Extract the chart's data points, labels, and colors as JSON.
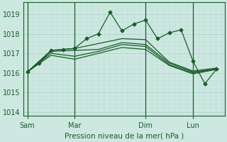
{
  "xlabel": "Pression niveau de la mer( hPa )",
  "bg_color": "#cce8e0",
  "grid_color_major": "#a8d0c8",
  "grid_color_minor": "#bcddd6",
  "line_color": "#1a5c2a",
  "ylim": [
    1013.8,
    1019.6
  ],
  "yticks": [
    1014,
    1015,
    1016,
    1017,
    1018,
    1019
  ],
  "xtick_labels": [
    "Sam",
    "Mar",
    "Dim",
    "Lun"
  ],
  "xtick_positions": [
    0,
    24,
    60,
    84
  ],
  "xlim": [
    -2,
    100
  ],
  "vline_positions": [
    0,
    24,
    60,
    84
  ],
  "series": [
    {
      "x": [
        0,
        6,
        12,
        18,
        24,
        30,
        36,
        42,
        48,
        54,
        60,
        66,
        72,
        78,
        84,
        90,
        96
      ],
      "y": [
        1016.05,
        1016.5,
        1017.15,
        1017.2,
        1017.25,
        1017.75,
        1018.0,
        1019.1,
        1018.15,
        1018.5,
        1018.7,
        1017.75,
        1018.05,
        1018.2,
        1016.6,
        1015.45,
        1016.2
      ],
      "marker": "D",
      "ms": 2.5,
      "lw": 0.9
    },
    {
      "x": [
        0,
        12,
        24,
        36,
        48,
        60,
        72,
        84,
        96
      ],
      "y": [
        1016.05,
        1017.15,
        1017.25,
        1017.5,
        1017.75,
        1017.7,
        1016.55,
        1016.1,
        1016.25
      ],
      "marker": null,
      "ms": 0,
      "lw": 0.9
    },
    {
      "x": [
        0,
        12,
        24,
        36,
        48,
        60,
        72,
        84,
        96
      ],
      "y": [
        1016.05,
        1017.1,
        1017.15,
        1017.2,
        1017.55,
        1017.45,
        1016.5,
        1016.05,
        1016.2
      ],
      "marker": null,
      "ms": 0,
      "lw": 0.9
    },
    {
      "x": [
        0,
        12,
        24,
        36,
        48,
        60,
        72,
        84,
        96
      ],
      "y": [
        1016.05,
        1017.0,
        1016.85,
        1017.1,
        1017.45,
        1017.35,
        1016.42,
        1016.0,
        1016.2
      ],
      "marker": null,
      "ms": 0,
      "lw": 0.9
    },
    {
      "x": [
        0,
        12,
        24,
        36,
        48,
        60,
        72,
        84,
        96
      ],
      "y": [
        1016.05,
        1016.9,
        1016.7,
        1017.0,
        1017.3,
        1017.2,
        1016.38,
        1015.95,
        1016.18
      ],
      "marker": null,
      "ms": 0,
      "lw": 0.9
    }
  ]
}
